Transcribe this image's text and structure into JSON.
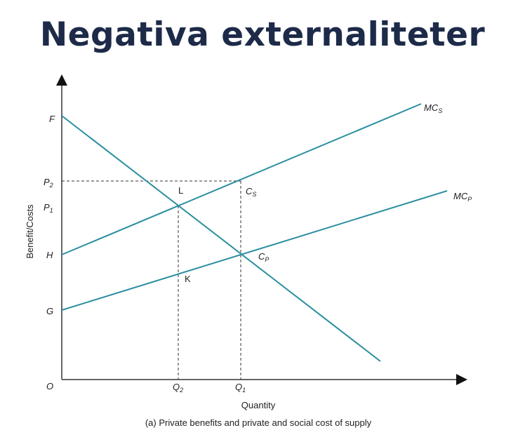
{
  "title": "Negativa externaliteter",
  "diagram": {
    "y_axis_label": "Benefit/Costs",
    "x_axis_label": "Quantity",
    "caption": "(a) Private benefits and private and social cost of supply",
    "y_points": {
      "F": "F",
      "P2": "P",
      "P2_sub": "2",
      "P1": "P",
      "P1_sub": "1",
      "H": "H",
      "G": "G",
      "O": "O"
    },
    "x_points": {
      "Q2": "Q",
      "Q2_sub": "2",
      "Q1": "Q",
      "Q1_sub": "1"
    },
    "points": {
      "L": "L",
      "K": "K",
      "CS": "C",
      "CS_sub": "S",
      "CP": "C",
      "CP_sub": "P"
    },
    "curves": {
      "MCS": "MC",
      "MCS_sub": "S",
      "MCP": "MC",
      "MCP_sub": "P"
    },
    "line_color": "#2a8fa0"
  }
}
